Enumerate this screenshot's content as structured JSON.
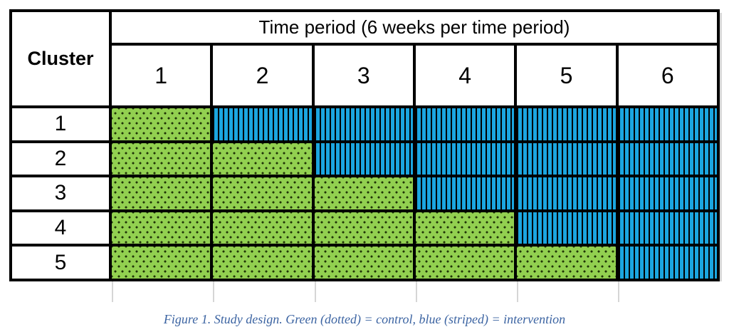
{
  "figure": {
    "header": {
      "cluster_label": "Cluster",
      "time_period_label": "Time period (6 weeks per time period)"
    },
    "caption": "Figure 1. Study design. Green (dotted) = control, blue (striped) = intervention",
    "colors": {
      "control_fill": "#92D050",
      "control_dot": "#1F3307",
      "intervention_fill": "#1BA6E0",
      "stripe_and_border": "#000000",
      "caption_text": "#3C64A2",
      "tick_gray": "#D6D6D6"
    }
  },
  "chart_data": {
    "type": "table",
    "title": "Time period (6 weeks per time period)",
    "row_header": "Cluster",
    "columns": [
      "1",
      "2",
      "3",
      "4",
      "5",
      "6"
    ],
    "rows": [
      {
        "cluster": "1",
        "values": [
          "control",
          "intervention",
          "intervention",
          "intervention",
          "intervention",
          "intervention"
        ]
      },
      {
        "cluster": "2",
        "values": [
          "control",
          "control",
          "intervention",
          "intervention",
          "intervention",
          "intervention"
        ]
      },
      {
        "cluster": "3",
        "values": [
          "control",
          "control",
          "control",
          "intervention",
          "intervention",
          "intervention"
        ]
      },
      {
        "cluster": "4",
        "values": [
          "control",
          "control",
          "control",
          "control",
          "intervention",
          "intervention"
        ]
      },
      {
        "cluster": "5",
        "values": [
          "control",
          "control",
          "control",
          "control",
          "control",
          "intervention"
        ]
      }
    ],
    "legend": {
      "control": "green (dotted)",
      "intervention": "blue (striped)"
    },
    "layout": {
      "grid": true,
      "periods_equal_width": true,
      "weeks_per_period": "6"
    }
  }
}
